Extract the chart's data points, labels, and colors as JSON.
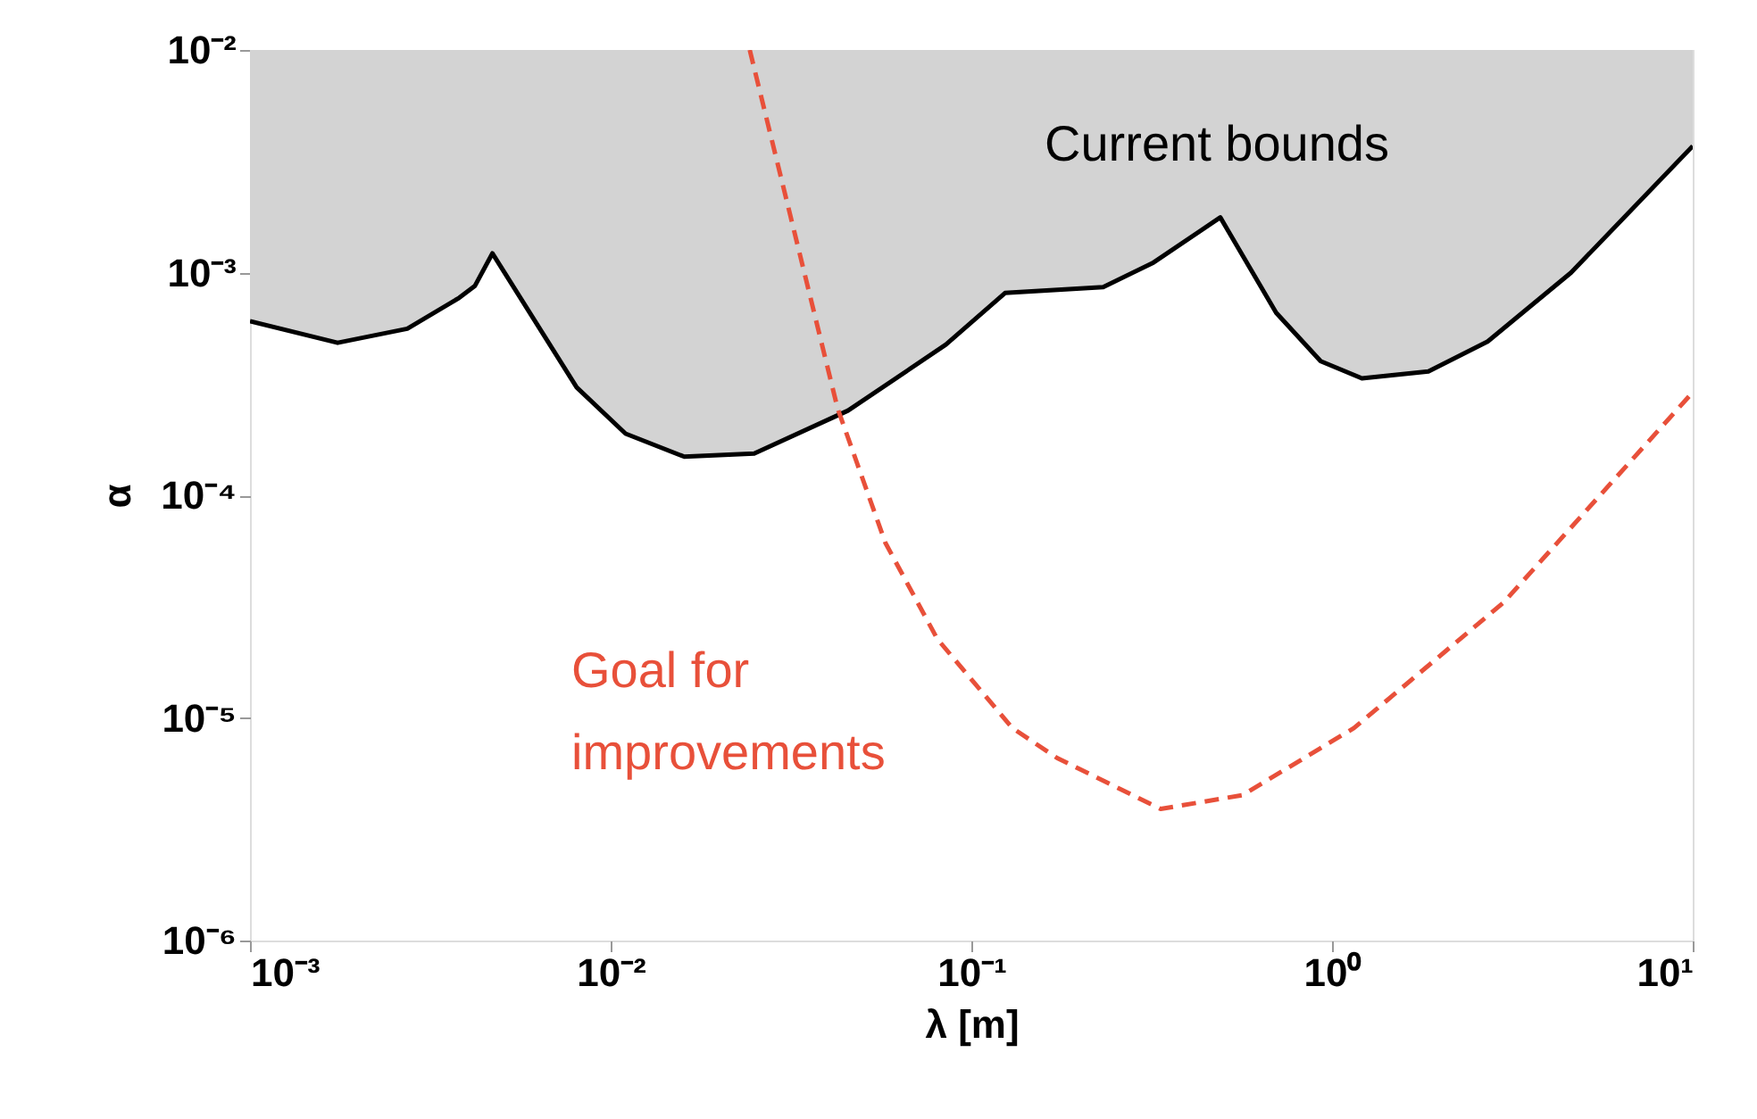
{
  "chart_data": {
    "type": "line",
    "xlabel": "λ [m]",
    "ylabel": "α",
    "log": "xy",
    "grid": false,
    "xlim": [
      0.001,
      10
    ],
    "ylim": [
      1e-06,
      0.01
    ],
    "xticks": [
      {
        "value": 0.001,
        "label": "10⁻³"
      },
      {
        "value": 0.01,
        "label": "10⁻²"
      },
      {
        "value": 0.1,
        "label": "10⁻¹"
      },
      {
        "value": 1,
        "label": "10⁰"
      },
      {
        "value": 10,
        "label": "10¹"
      }
    ],
    "yticks": [
      {
        "value": 1e-06,
        "label": "10⁻⁶"
      },
      {
        "value": 1e-05,
        "label": "10⁻⁵"
      },
      {
        "value": 0.0001,
        "label": "10⁻⁴"
      },
      {
        "value": 0.001,
        "label": "10⁻³"
      },
      {
        "value": 0.01,
        "label": "10⁻²"
      }
    ],
    "series": [
      {
        "type": "line",
        "color": "#000000",
        "line_style": "solid",
        "x": [
          0.001,
          0.00175,
          0.00273,
          0.0038,
          0.0042,
          0.0047,
          0.00805,
          0.011,
          0.016,
          0.025,
          0.0455,
          0.085,
          0.124,
          0.232,
          0.32,
          0.49,
          0.7,
          0.93,
          1.21,
          1.85,
          2.7,
          4.6,
          10
        ],
        "values": [
          0.000605,
          0.000484,
          0.00056,
          0.00077,
          0.00087,
          0.00122,
          0.000305,
          0.000189,
          0.000149,
          0.000154,
          0.00024,
          0.000475,
          0.00081,
          0.00086,
          0.00111,
          0.00177,
          0.00066,
          0.0004,
          0.000335,
          0.00036,
          0.00049,
          0.001,
          0.0037
        ],
        "lower": [
          0.000605,
          0.000484,
          0.00056,
          0.00077,
          0.00087,
          0.00122,
          0.000305,
          0.000189,
          0.000149,
          0.000154,
          0.00024,
          0.000475,
          0.00081,
          0.00086,
          0.00111,
          0.00177,
          0.00066,
          0.0004,
          0.000335,
          0.00036,
          0.00049,
          0.001,
          0.0037
        ],
        "upper": [
          0.01,
          0.01,
          0.01,
          0.01,
          0.01,
          0.01,
          0.01,
          0.01,
          0.01,
          0.01,
          0.01,
          0.01,
          0.01,
          0.01,
          0.01,
          0.01,
          0.01,
          0.01,
          0.01,
          0.01,
          0.01,
          0.01,
          0.01
        ]
      },
      {
        "type": "line",
        "color": "#e8503a",
        "line_style": "dashed",
        "x": [
          0.0243,
          0.0426,
          0.0578,
          0.0805,
          0.13,
          0.173,
          0.335,
          0.565,
          1.15,
          2.99,
          10
        ],
        "values": [
          0.01,
          0.000245,
          6.1e-05,
          2.26e-05,
          9e-06,
          6.6e-06,
          3.9e-06,
          4.5e-06,
          9e-06,
          3.3e-05,
          0.00029
        ]
      }
    ],
    "annotations": [
      "Current bounds",
      "Goal for\nimprovements"
    ]
  }
}
